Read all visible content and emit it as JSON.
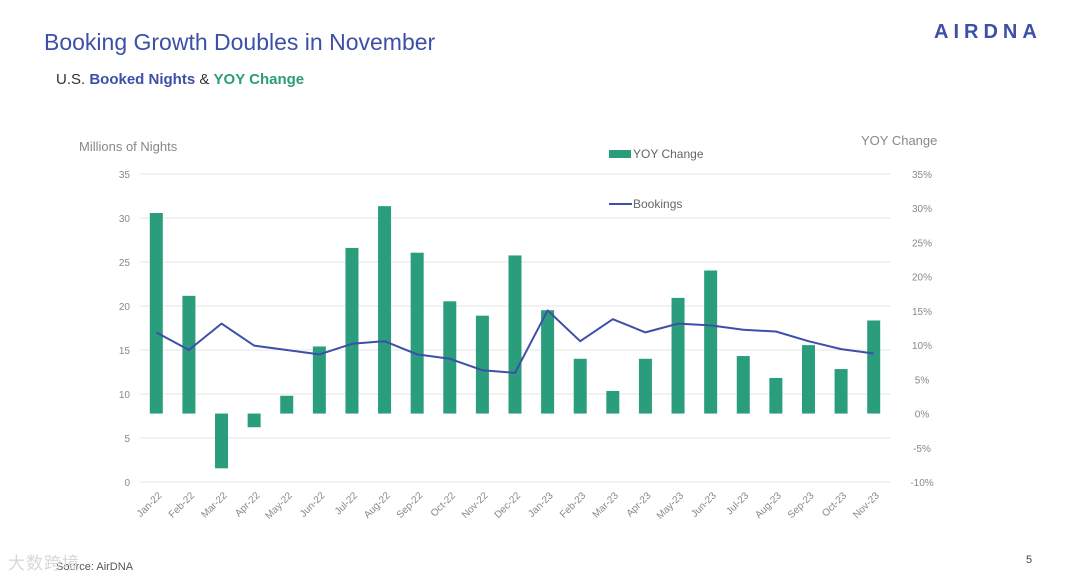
{
  "header": {
    "title": "Booking Growth Doubles in November",
    "subtitle_prefix": "U.S. ",
    "subtitle_series1": "Booked Nights",
    "subtitle_amp": " & ",
    "subtitle_series2": "YOY Change",
    "logo": "AIRDNA"
  },
  "footer": {
    "source": "Source: AirDNA",
    "page_number": "5",
    "watermark": "大数跨境"
  },
  "colors": {
    "bars": "#2a9d7c",
    "line": "#3d4fa8",
    "grid": "#e6e6e6"
  },
  "chart_data": {
    "type": "bar",
    "categories": [
      "Jan-22",
      "Feb-22",
      "Mar-22",
      "Apr-22",
      "May-22",
      "Jun-22",
      "Jul-22",
      "Aug-22",
      "Sep-22",
      "Oct-22",
      "Nov-22",
      "Dec-22",
      "Jan-23",
      "Feb-23",
      "Mar-23",
      "Apr-23",
      "May-23",
      "Jun-23",
      "Jul-23",
      "Aug-23",
      "Sep-23",
      "Oct-23",
      "Nov-23"
    ],
    "left_axis": {
      "title": "Millions of Nights",
      "ylim": [
        0,
        35
      ],
      "ticks": [
        "0",
        "5",
        "10",
        "15",
        "20",
        "25",
        "30",
        "35"
      ]
    },
    "right_axis": {
      "title": "YOY Change",
      "ylim": [
        -10,
        35
      ],
      "ticks": [
        "-10%",
        "-5%",
        "0%",
        "5%",
        "10%",
        "15%",
        "20%",
        "25%",
        "30%",
        "35%"
      ]
    },
    "series": [
      {
        "name": "YOY Change",
        "kind": "bar",
        "axis": "right",
        "unit": "%",
        "values": [
          29.3,
          17.2,
          -8.0,
          -2.0,
          2.6,
          9.8,
          24.2,
          30.3,
          23.5,
          16.4,
          14.3,
          23.1,
          15.1,
          8.0,
          3.3,
          8.0,
          16.9,
          20.9,
          8.4,
          5.2,
          10.0,
          6.5,
          13.6
        ]
      },
      {
        "name": "Bookings",
        "kind": "line",
        "axis": "left",
        "unit": "millions",
        "values": [
          17.0,
          15.0,
          18.0,
          15.5,
          15.0,
          14.5,
          15.7,
          16.0,
          14.5,
          14.0,
          12.7,
          12.4,
          19.5,
          16.0,
          18.5,
          17.0,
          18.0,
          17.8,
          17.3,
          17.1,
          16.0,
          15.1,
          14.6
        ]
      }
    ],
    "legend_position": "top-right",
    "grid": true
  }
}
